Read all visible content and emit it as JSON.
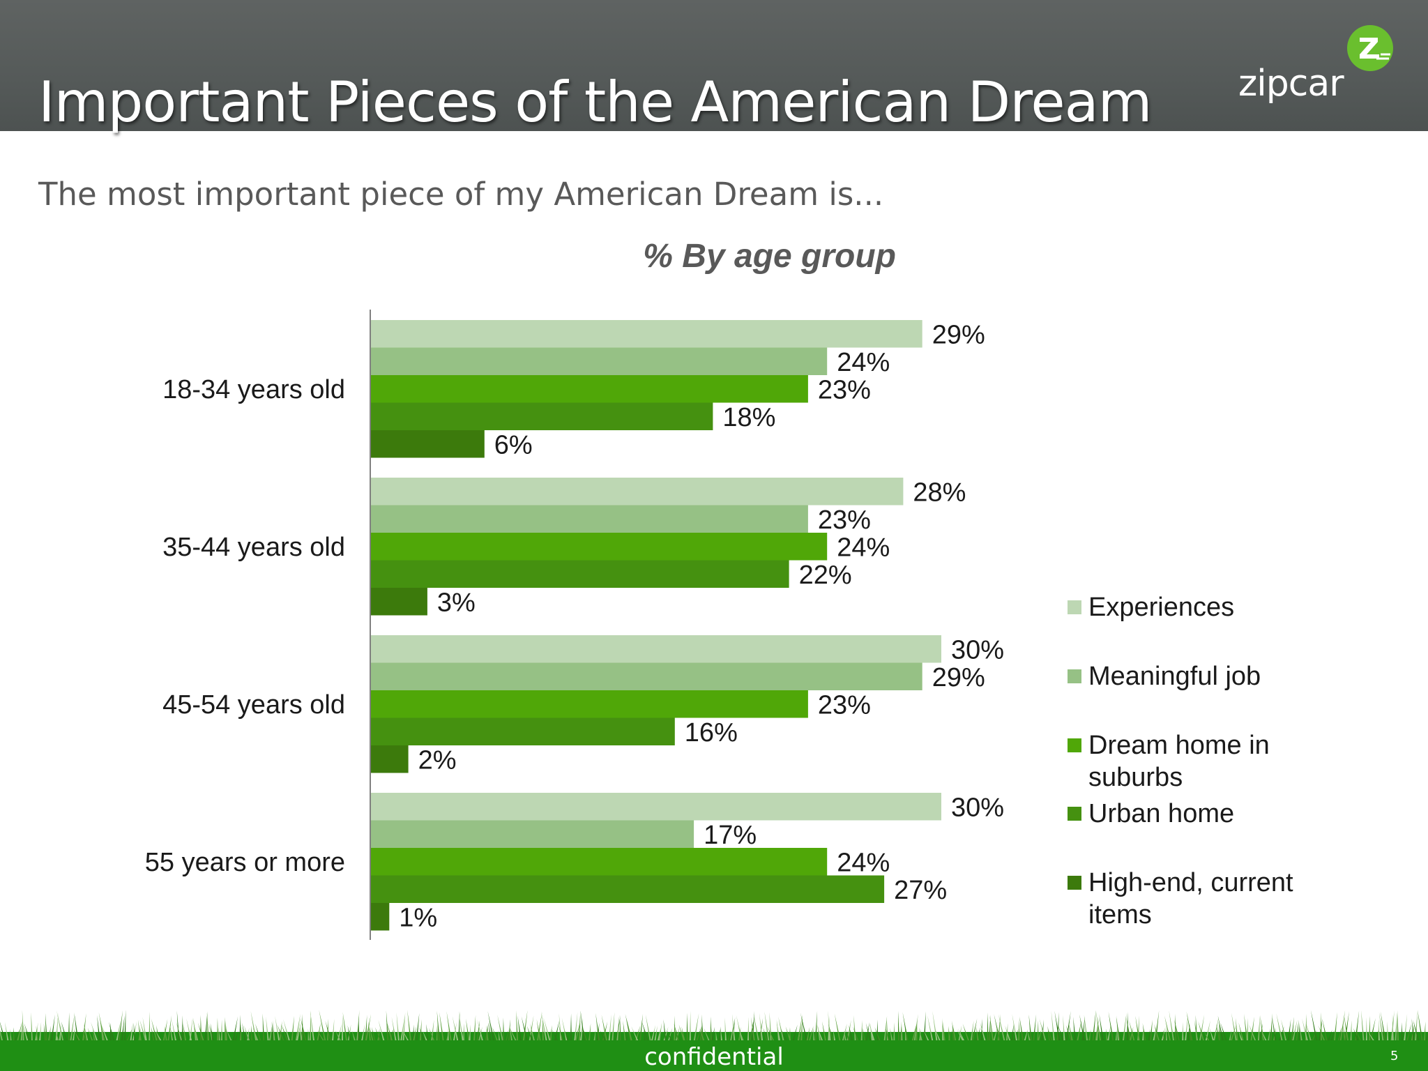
{
  "slide": {
    "title": "Important Pieces of the American Dream",
    "subtitle": "The most important piece of my American Dream is...",
    "logo_text": "zipcar",
    "footer": "confidential",
    "page_number": "5"
  },
  "colors": {
    "header": "#555a59",
    "grass": "#2e8b1a",
    "logo_badge": "#6abf2e"
  },
  "chart_data": {
    "type": "bar",
    "orientation": "horizontal",
    "title": "% By age group",
    "categories": [
      "18-34 years old",
      "35-44 years old",
      "45-54 years old",
      "55 years or more"
    ],
    "series": [
      {
        "name": "Experiences",
        "color": "#bdd7b3",
        "values": [
          29,
          28,
          30,
          30
        ],
        "labels": [
          "29%",
          "28%",
          "30%",
          "30%"
        ]
      },
      {
        "name": "Meaningful job",
        "color": "#96c185",
        "values": [
          24,
          23,
          29,
          17
        ],
        "labels": [
          "24%",
          "23%",
          "29%",
          "17%"
        ]
      },
      {
        "name": "Dream home in suburbs",
        "legend_lines": [
          "Dream home in",
          "suburbs"
        ],
        "color": "#50a708",
        "values": [
          23,
          24,
          23,
          24
        ],
        "labels": [
          "23%",
          "24%",
          "23%",
          "24%"
        ]
      },
      {
        "name": "Urban home",
        "color": "#459110",
        "values": [
          18,
          22,
          16,
          27
        ],
        "labels": [
          "18%",
          "22%",
          "16%",
          "27%"
        ]
      },
      {
        "name": "High-end, current items",
        "legend_lines": [
          "High-end, current",
          "items"
        ],
        "color": "#3c7a0c",
        "values": [
          6,
          3,
          2,
          1
        ],
        "labels": [
          "6%",
          "3%",
          "2%",
          "1%"
        ]
      }
    ],
    "xlim": [
      0,
      30
    ],
    "grid": false,
    "legend_position": "right"
  }
}
